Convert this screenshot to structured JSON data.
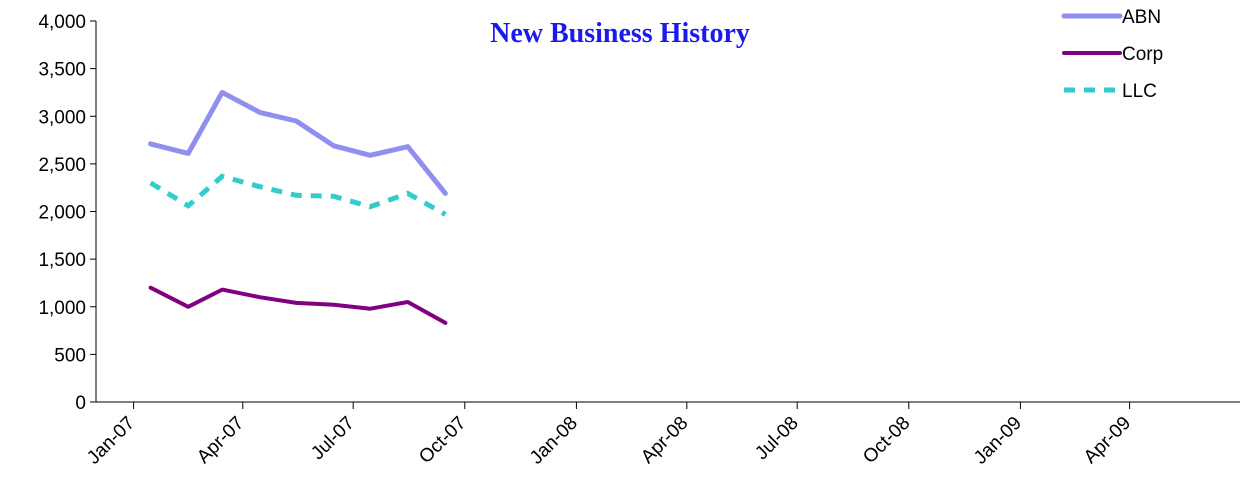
{
  "chart_data": {
    "type": "line",
    "title": "New Business History",
    "xlabel": "",
    "ylabel": "",
    "ylim": [
      0,
      4000
    ],
    "y_ticks": [
      0,
      500,
      1000,
      1500,
      2000,
      2500,
      3000,
      3500,
      4000
    ],
    "y_tick_labels": [
      "0",
      "500",
      "1,000",
      "1,500",
      "2,000",
      "2,500",
      "3,000",
      "3,500",
      "4,000"
    ],
    "x_ticks": [
      "2007-01-01",
      "2007-04-01",
      "2007-07-01",
      "2007-10-01",
      "2008-01-01",
      "2008-04-01",
      "2008-07-01",
      "2008-10-01",
      "2009-01-01",
      "2009-04-01"
    ],
    "x_tick_labels": [
      "Jan-07",
      "Apr-07",
      "Jul-07",
      "Oct-07",
      "Jan-08",
      "Apr-08",
      "Jul-08",
      "Oct-08",
      "Jan-09",
      "Apr-09"
    ],
    "xlim": [
      "2006-12-01",
      "2009-07-01"
    ],
    "x": [
      "2007-01-15",
      "2007-02-15",
      "2007-03-15",
      "2007-04-15",
      "2007-05-15",
      "2007-06-15",
      "2007-07-15",
      "2007-08-15",
      "2007-09-15"
    ],
    "series": [
      {
        "name": "ABN",
        "color": "#8f8ff0",
        "style": "solid-thick",
        "values": [
          2710,
          2610,
          3250,
          3040,
          2950,
          2690,
          2590,
          2680,
          2190
        ]
      },
      {
        "name": "Corp",
        "color": "#800080",
        "style": "solid",
        "values": [
          1200,
          1000,
          1180,
          1100,
          1040,
          1020,
          980,
          1050,
          830
        ]
      },
      {
        "name": "LLC",
        "color": "#33cccc",
        "style": "dashed",
        "values": [
          2300,
          2060,
          2370,
          2260,
          2170,
          2160,
          2050,
          2190,
          1970
        ]
      }
    ],
    "legend_position": "top-right",
    "grid": false
  }
}
